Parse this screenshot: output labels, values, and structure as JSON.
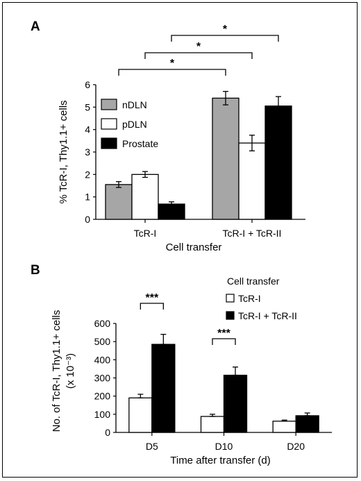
{
  "chart_data": [
    {
      "panel": "A",
      "type": "bar",
      "xlabel": "Cell transfer",
      "ylabel": "% TcR-I, Thy1.1+ cells",
      "ylim": [
        0,
        6
      ],
      "yticks": [
        "0",
        "1",
        "2",
        "3",
        "4",
        "5",
        "6"
      ],
      "categories": [
        "TcR-I",
        "TcR-I + TcR-II"
      ],
      "series": [
        {
          "name": "nDLN",
          "color": "#a6a6a6",
          "values": [
            1.55,
            5.4
          ],
          "errors": [
            0.13,
            0.3
          ]
        },
        {
          "name": "pDLN",
          "color": "#ffffff",
          "values": [
            2.0,
            3.4
          ],
          "errors": [
            0.13,
            0.35
          ]
        },
        {
          "name": "Prostate",
          "color": "#000000",
          "values": [
            0.68,
            5.05
          ],
          "errors": [
            0.1,
            0.42
          ]
        }
      ],
      "legend_position": "top-left",
      "significance": [
        {
          "label": "*",
          "from": [
            0,
            0
          ],
          "to": [
            1,
            0
          ]
        },
        {
          "label": "*",
          "from": [
            0,
            1
          ],
          "to": [
            1,
            1
          ]
        },
        {
          "label": "*",
          "from": [
            0,
            2
          ],
          "to": [
            1,
            2
          ]
        }
      ]
    },
    {
      "panel": "B",
      "type": "bar",
      "xlabel": "Time after transfer (d)",
      "ylabel_lines": [
        "No. of TcR-I, Thy1.1+ cells",
        "(x 10⁻³)"
      ],
      "ylim": [
        0,
        600
      ],
      "yticks": [
        "0",
        "100",
        "200",
        "300",
        "400",
        "500",
        "600"
      ],
      "categories": [
        "D5",
        "D10",
        "D20"
      ],
      "legend_title": "Cell transfer",
      "legend_position": "top-right",
      "series": [
        {
          "name": "TcR-I",
          "color": "#ffffff",
          "values": [
            190,
            88,
            62
          ],
          "errors": [
            20,
            12,
            6
          ]
        },
        {
          "name": "TcR-I + TcR-II",
          "color": "#000000",
          "values": [
            485,
            315,
            92
          ],
          "errors": [
            55,
            45,
            15
          ]
        }
      ],
      "significance": [
        {
          "label": "***",
          "category": 0
        },
        {
          "label": "***",
          "category": 1
        }
      ]
    }
  ]
}
